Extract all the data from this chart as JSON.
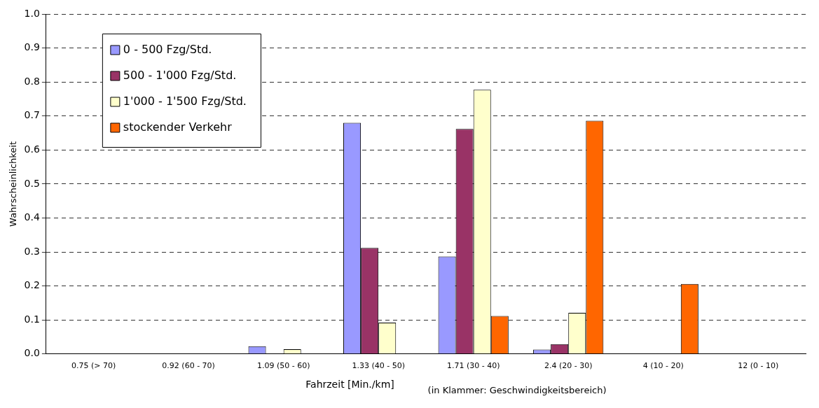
{
  "chart_data": {
    "type": "bar",
    "categories": [
      "0.75 (> 70)",
      "0.92 (60 - 70)",
      "1.09 (50 - 60)",
      "1.33 (40 - 50)",
      "1.71 (30 - 40)",
      "2.4 (20 - 30)",
      "4 (10 - 20)",
      "12 (0 - 10)"
    ],
    "series": [
      {
        "name": "0 - 500 Fzg/Std.",
        "color": "#9999ff",
        "values": [
          0,
          0,
          0.023,
          0.68,
          0.287,
          0.013,
          0,
          0
        ]
      },
      {
        "name": "500 - 1'000 Fzg/Std.",
        "color": "#993366",
        "values": [
          0,
          null,
          null,
          0.312,
          0.662,
          0.029,
          null,
          0
        ]
      },
      {
        "name": "1'000 - 1'500 Fzg/Std.",
        "color": "#ffffcc",
        "values": [
          0,
          0,
          0.014,
          0.092,
          0.777,
          0.121,
          0,
          0
        ]
      },
      {
        "name": "stockender Verkehr",
        "color": "#ff6600",
        "values": [
          0,
          0,
          0,
          0,
          0.112,
          0.686,
          0.206,
          0
        ]
      }
    ],
    "xlabel": "Fahrzeit [Min./km]",
    "ylabel": "Wahrscheinlichkeit",
    "annotations": [
      "(in Klammer: Geschwindigkeitsbereich)"
    ],
    "ylim": [
      0,
      1
    ],
    "yticks": [
      {
        "value": 0,
        "label": "0.0"
      },
      0.1,
      0.2,
      0.3,
      0.4,
      0.5,
      0.6,
      0.7,
      0.8,
      0.9,
      {
        "value": 1,
        "label": "1.0"
      }
    ],
    "grid": "y",
    "line_style": "dashed",
    "legend": "top left"
  }
}
